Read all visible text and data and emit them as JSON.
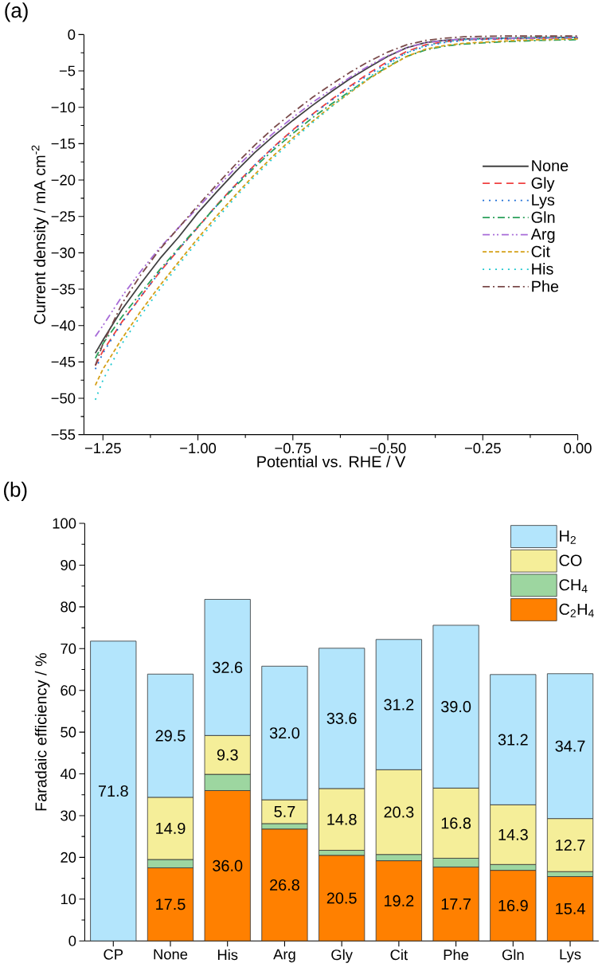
{
  "chart_data": [
    {
      "type": "line",
      "title": "(a)",
      "xlabel": "Potential vs. RHE / V",
      "ylabel": "Current density / mA cm$^{-2}$",
      "x": [
        -1.27,
        -1.25,
        -1.2,
        -1.15,
        -1.1,
        -1.05,
        -1.0,
        -0.95,
        -0.9,
        -0.85,
        -0.8,
        -0.75,
        -0.7,
        -0.65,
        -0.6,
        -0.55,
        -0.5,
        -0.45,
        -0.4,
        -0.35,
        -0.3,
        -0.2,
        -0.1,
        0
      ],
      "series": [
        {
          "name": "None",
          "color": "#404040",
          "line_style": "solid",
          "values": [
            -43.8,
            -42.0,
            -37.8,
            -34.2,
            -30.8,
            -27.8,
            -24.5,
            -21.6,
            -18.8,
            -16.2,
            -13.9,
            -11.8,
            -9.8,
            -7.9,
            -6.1,
            -4.5,
            -3.0,
            -1.8,
            -1.1,
            -0.8,
            -0.6,
            -0.5,
            -0.4,
            -0.4
          ]
        },
        {
          "name": "Gly",
          "color": "#f04040",
          "line_style": "dashed",
          "values": [
            -45.5,
            -43.5,
            -39.5,
            -36.0,
            -32.6,
            -29.5,
            -26.5,
            -23.4,
            -20.6,
            -17.9,
            -15.4,
            -13.1,
            -11.0,
            -9.0,
            -7.1,
            -5.3,
            -3.7,
            -2.3,
            -1.4,
            -1.0,
            -0.7,
            -0.6,
            -0.5,
            -0.5
          ]
        },
        {
          "name": "Lys",
          "color": "#1f6fd6",
          "line_style": "dotted",
          "values": [
            -46.0,
            -43.8,
            -39.6,
            -36.0,
            -32.6,
            -29.5,
            -26.5,
            -23.5,
            -20.6,
            -17.9,
            -15.5,
            -13.2,
            -11.1,
            -9.1,
            -7.3,
            -5.5,
            -3.9,
            -2.5,
            -1.6,
            -1.1,
            -0.8,
            -0.6,
            -0.5,
            -0.5
          ]
        },
        {
          "name": "Gln",
          "color": "#2aa05a",
          "line_style": "dashdot",
          "values": [
            -44.5,
            -42.5,
            -38.8,
            -35.5,
            -32.3,
            -29.3,
            -26.4,
            -23.5,
            -20.8,
            -18.2,
            -15.8,
            -13.6,
            -11.5,
            -9.6,
            -7.8,
            -6.0,
            -4.4,
            -3.0,
            -2.1,
            -1.6,
            -1.3,
            -1.0,
            -0.8,
            -0.7
          ]
        },
        {
          "name": "Arg",
          "color": "#a86cd8",
          "line_style": "dashdotdot",
          "values": [
            -41.5,
            -40.0,
            -36.0,
            -32.5,
            -29.3,
            -26.5,
            -23.8,
            -21.0,
            -18.3,
            -15.8,
            -13.5,
            -11.4,
            -9.4,
            -7.6,
            -5.9,
            -4.3,
            -2.9,
            -1.8,
            -1.1,
            -0.8,
            -0.6,
            -0.5,
            -0.5,
            -0.4
          ]
        },
        {
          "name": "Cit",
          "color": "#d4a017",
          "line_style": "shortdash",
          "values": [
            -48.2,
            -46.0,
            -41.8,
            -38.0,
            -34.5,
            -31.2,
            -28.0,
            -24.9,
            -22.0,
            -19.2,
            -16.6,
            -14.2,
            -12.0,
            -9.9,
            -8.0,
            -6.1,
            -4.5,
            -3.0,
            -2.0,
            -1.5,
            -1.2,
            -0.9,
            -0.7,
            -0.6
          ]
        },
        {
          "name": "His",
          "color": "#20c8d0",
          "line_style": "dotted",
          "values": [
            -50.2,
            -47.5,
            -42.5,
            -38.6,
            -35.0,
            -31.6,
            -28.4,
            -25.3,
            -22.3,
            -19.5,
            -16.9,
            -14.5,
            -12.2,
            -10.0,
            -7.9,
            -5.9,
            -4.1,
            -2.5,
            -1.5,
            -1.0,
            -0.7,
            -0.5,
            -0.4,
            -0.4
          ]
        },
        {
          "name": "Phe",
          "color": "#7a4a4a",
          "line_style": "dashdot",
          "values": [
            -45.5,
            -42.5,
            -37.0,
            -33.0,
            -29.5,
            -26.5,
            -23.5,
            -20.6,
            -17.8,
            -15.2,
            -12.8,
            -10.7,
            -8.7,
            -6.9,
            -5.2,
            -3.7,
            -2.4,
            -1.4,
            -0.8,
            -0.5,
            -0.3,
            -0.2,
            -0.2,
            -0.2
          ]
        }
      ],
      "xlim": [
        -1.3,
        0
      ],
      "ylim": [
        -55,
        0
      ],
      "xticks": [
        {
          "value": -1.25,
          "label": "−1.25"
        },
        {
          "value": -1.0,
          "label": "−1.00"
        },
        {
          "value": -0.75,
          "label": "−0.75"
        },
        {
          "value": -0.5,
          "label": "−0.50"
        },
        {
          "value": -0.25,
          "label": "−0.25"
        },
        {
          "value": 0,
          "label": "0.00"
        }
      ],
      "yticks": [
        {
          "value": 0,
          "label": "0"
        },
        {
          "value": -5,
          "label": "−5"
        },
        {
          "value": -10,
          "label": "−10"
        },
        {
          "value": -15,
          "label": "−15"
        },
        {
          "value": -20,
          "label": "−20"
        },
        {
          "value": -25,
          "label": "−25"
        },
        {
          "value": -30,
          "label": "−30"
        },
        {
          "value": -35,
          "label": "−35"
        },
        {
          "value": -40,
          "label": "−40"
        },
        {
          "value": -45,
          "label": "−45"
        },
        {
          "value": -50,
          "label": "−50"
        },
        {
          "value": -55,
          "label": "−55"
        }
      ],
      "legend": "right",
      "marker": "none"
    },
    {
      "type": "bar",
      "title": "(b)",
      "ylabel": "Faradaic efficiency / %",
      "stacked": true,
      "categories": [
        "CP",
        "None",
        "His",
        "Arg",
        "Gly",
        "Cit",
        "Phe",
        "Gln",
        "Lys"
      ],
      "series": [
        {
          "name": "C$_{2}$H$_{4}$",
          "color": "#ff8000",
          "values": [
            null,
            17.5,
            36.0,
            26.8,
            20.5,
            19.2,
            17.7,
            16.9,
            15.4
          ],
          "value_labels": [
            null,
            "17.5",
            "36.0",
            "26.8",
            "20.5",
            "19.2",
            "17.7",
            "16.9",
            "15.4"
          ]
        },
        {
          "name": "CH$_{4}$",
          "color": "#9dd6a0",
          "values": [
            null,
            2.0,
            3.9,
            1.3,
            1.2,
            1.5,
            2.1,
            1.4,
            1.2
          ]
        },
        {
          "name": "CO",
          "color": "#f5ee99",
          "values": [
            null,
            14.9,
            9.3,
            5.7,
            14.8,
            20.3,
            16.8,
            14.3,
            12.7
          ],
          "value_labels": [
            null,
            "14.9",
            "9.3",
            "5.7",
            "14.8",
            "20.3",
            "16.8",
            "14.3",
            "12.7"
          ]
        },
        {
          "name": "H$_{2}$",
          "color": "#b3e5fc",
          "values": [
            71.8,
            29.5,
            32.6,
            32.0,
            33.6,
            31.2,
            39.0,
            31.2,
            34.7
          ],
          "value_labels": [
            "71.8",
            "29.5",
            "32.6",
            "32.0",
            "33.6",
            "31.2",
            "39.0",
            "31.2",
            "34.7"
          ]
        }
      ],
      "ylim": [
        0,
        100
      ],
      "yticks": [
        0,
        10,
        20,
        30,
        40,
        50,
        60,
        70,
        80,
        90,
        100
      ],
      "legend": "top right"
    }
  ]
}
